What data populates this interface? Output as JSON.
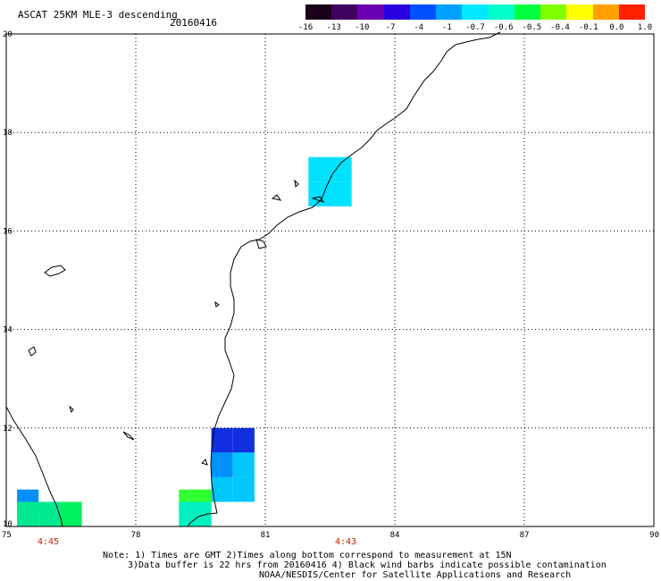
{
  "header": {
    "title": "ASCAT 25KM MLE-3 descending",
    "date": "20160416"
  },
  "colorbar": {
    "labels": [
      "-16",
      "-13",
      "-10",
      "-7",
      "-4",
      "-1",
      "-0.7",
      "-0.6",
      "-0.5",
      "-0.4",
      "-0.1",
      "0.0",
      "1.0"
    ],
    "colors": [
      "#1a0018",
      "#400060",
      "#6a00b0",
      "#2a00e0",
      "#0050ff",
      "#00a0ff",
      "#00e8ff",
      "#00ffc8",
      "#00ff40",
      "#80ff00",
      "#ffff00",
      "#ffa000",
      "#ff2000"
    ]
  },
  "axes": {
    "x_ticks": [
      "75",
      "78",
      "81",
      "84",
      "87",
      "90"
    ],
    "y_ticks": [
      "10",
      "12",
      "14",
      "16",
      "18",
      "20"
    ]
  },
  "time_labels": [
    "4:45",
    "4:43"
  ],
  "notes": [
    "Note: 1) Times are GMT 2)Times along bottom correspond to measurement at 15N",
    "3)Data buffer is 22 hrs from 20160416 4) Black wind barbs indicate possible contamination",
    "NOAA/NESDIS/Center for Satellite Applications and Research"
  ],
  "cells": [
    {
      "lon": 82.25,
      "lat": 17.25,
      "color": "#00e0ff"
    },
    {
      "lon": 82.75,
      "lat": 17.25,
      "color": "#00e0ff"
    },
    {
      "lon": 82.25,
      "lat": 16.75,
      "color": "#00e0ff"
    },
    {
      "lon": 82.75,
      "lat": 16.75,
      "color": "#00e0ff"
    },
    {
      "lon": 80.0,
      "lat": 11.75,
      "color": "#1030e0"
    },
    {
      "lon": 80.5,
      "lat": 11.75,
      "color": "#1030e0"
    },
    {
      "lon": 80.0,
      "lat": 11.25,
      "color": "#0090ff"
    },
    {
      "lon": 80.5,
      "lat": 11.25,
      "color": "#00c8ff"
    },
    {
      "lon": 80.0,
      "lat": 10.75,
      "color": "#00c8ff"
    },
    {
      "lon": 80.5,
      "lat": 10.75,
      "color": "#00c8ff"
    },
    {
      "lon": 75.5,
      "lat": 10.5,
      "color": "#0090ff"
    },
    {
      "lon": 75.5,
      "lat": 10.25,
      "color": "#00e890"
    },
    {
      "lon": 76.0,
      "lat": 10.25,
      "color": "#00e890"
    },
    {
      "lon": 76.5,
      "lat": 10.25,
      "color": "#00f060"
    },
    {
      "lon": 79.25,
      "lat": 10.5,
      "color": "#30ff30"
    },
    {
      "lon": 79.5,
      "lat": 10.5,
      "color": "#30ff30"
    },
    {
      "lon": 79.25,
      "lat": 10.25,
      "color": "#00f0c0"
    },
    {
      "lon": 79.5,
      "lat": 10.25,
      "color": "#00f0c0"
    }
  ]
}
